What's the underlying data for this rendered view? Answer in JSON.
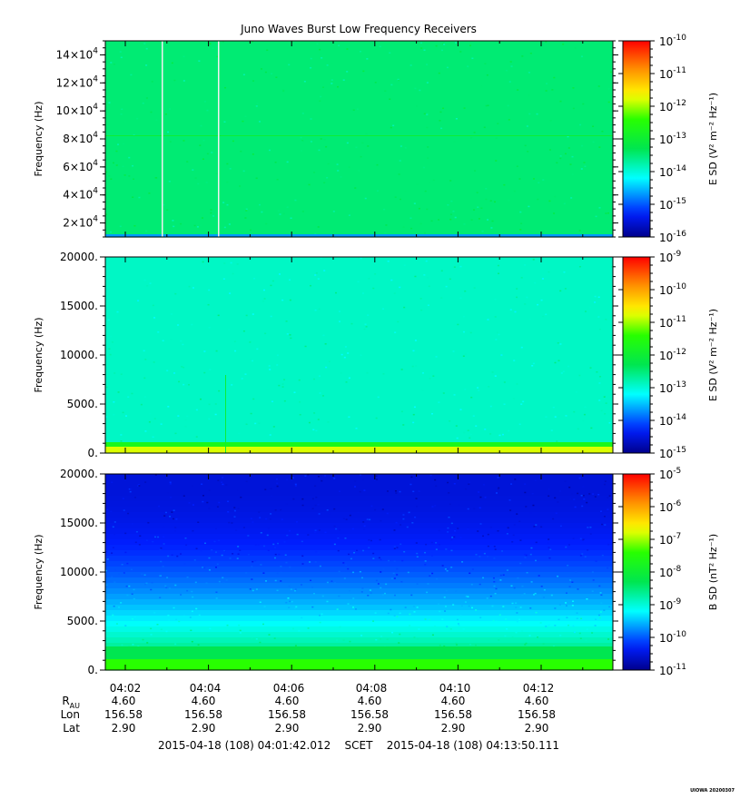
{
  "chart_data": {
    "type": "heatmap",
    "title": "Juno Waves Burst Low Frequency Receivers",
    "x_tick_labels": [
      "04:02",
      "04:04",
      "04:06",
      "04:08",
      "04:10",
      "04:12"
    ],
    "panels": [
      {
        "ylabel": "Frequency (Hz)",
        "y_range": [
          10000,
          150000
        ],
        "y_ticks": [
          {
            "value": 20000,
            "label": "2×10",
            "exp": "4"
          },
          {
            "value": 40000,
            "label": "4×10",
            "exp": "4"
          },
          {
            "value": 60000,
            "label": "6×10",
            "exp": "4"
          },
          {
            "value": 80000,
            "label": "8×10",
            "exp": "4"
          },
          {
            "value": 100000,
            "label": "10×10",
            "exp": "4"
          },
          {
            "value": 120000,
            "label": "12×10",
            "exp": "4"
          },
          {
            "value": 140000,
            "label": "14×10",
            "exp": "4"
          }
        ],
        "colorbar_label": "E SD (V² m⁻² Hz⁻¹)",
        "colorbar_exponents": [
          "-10",
          "-11",
          "-12",
          "-13",
          "-14",
          "-15",
          "-16"
        ],
        "background_level": 0.42
      },
      {
        "ylabel": "Frequency (Hz)",
        "y_range": [
          0,
          20000
        ],
        "y_ticks": [
          {
            "value": 0,
            "label": "0."
          },
          {
            "value": 5000,
            "label": "5000."
          },
          {
            "value": 10000,
            "label": "10000."
          },
          {
            "value": 15000,
            "label": "15000."
          },
          {
            "value": 20000,
            "label": "20000."
          }
        ],
        "colorbar_label": "E SD (V² m⁻² Hz⁻¹)",
        "colorbar_exponents": [
          "-9",
          "-10",
          "-11",
          "-12",
          "-13",
          "-14",
          "-15"
        ],
        "background_level": 0.35
      },
      {
        "ylabel": "Frequency (Hz)",
        "y_range": [
          0,
          20000
        ],
        "y_ticks": [
          {
            "value": 0,
            "label": "0."
          },
          {
            "value": 5000,
            "label": "5000."
          },
          {
            "value": 10000,
            "label": "10000."
          },
          {
            "value": 15000,
            "label": "15000."
          },
          {
            "value": 20000,
            "label": "20000."
          }
        ],
        "colorbar_label": "B SD (nT² Hz⁻¹)",
        "colorbar_exponents": [
          "-5",
          "-6",
          "-7",
          "-8",
          "-9",
          "-10",
          "-11"
        ],
        "background_level": 0.12
      }
    ],
    "ephemeris": {
      "rows": [
        {
          "label": "R",
          "sub": "AU",
          "values": [
            "4.60",
            "4.60",
            "4.60",
            "4.60",
            "4.60",
            "4.60"
          ]
        },
        {
          "label": "Lon",
          "values": [
            "156.58",
            "156.58",
            "156.58",
            "156.58",
            "156.58",
            "156.58"
          ]
        },
        {
          "label": "Lat",
          "values": [
            "2.90",
            "2.90",
            "2.90",
            "2.90",
            "2.90",
            "2.90"
          ]
        }
      ]
    },
    "time_range": {
      "start": "2015-04-18 (108) 04:01:42.012",
      "label": "SCET",
      "end": "2015-04-18 (108) 04:13:50.111"
    },
    "stamp": "UIOWA 20200307"
  }
}
